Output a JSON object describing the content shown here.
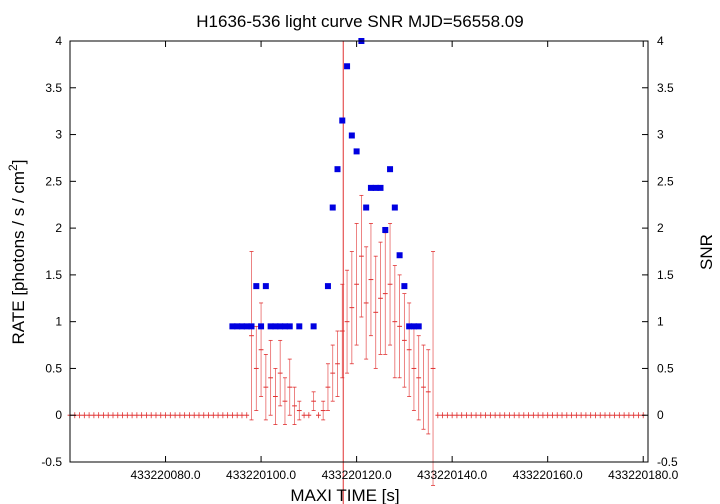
{
  "chart_data": {
    "type": "scatter",
    "title": "H1636-536 light curve  SNR MJD=56558.09",
    "xlabel": "MAXI TIME [s]",
    "ylabel_main": "RATE [photons / s / cm",
    "ylabel_sup": "2",
    "ylabel_close": "]",
    "y2label": "SNR",
    "xlim": [
      433220060.0,
      433220181.0
    ],
    "ylim": [
      -0.5,
      4
    ],
    "y2lim": [
      -0.5,
      4
    ],
    "x_ticks": [
      433220080.0,
      433220100.0,
      433220120.0,
      433220140.0,
      433220160.0,
      433220180.0
    ],
    "x_tick_labels": [
      "433220080.0",
      "433220100.0",
      "433220120.0",
      "433220140.0",
      "433220160.0",
      "433220180.0"
    ],
    "y_ticks": [
      -0.5,
      0,
      0.5,
      1,
      1.5,
      2,
      2.5,
      3,
      3.5,
      4
    ],
    "y_tick_labels": [
      "-0.5",
      "0",
      "0.5",
      "1",
      "1.5",
      "2",
      "2.5",
      "3",
      "3.5",
      "4"
    ],
    "y2_ticks": [
      -0.5,
      0,
      0.5,
      1,
      1.5,
      2,
      2.5,
      3,
      3.5,
      4
    ],
    "y2_tick_labels": [
      "-0.5",
      "0",
      "0.5",
      "1",
      "1.5",
      "2",
      "2.5",
      "3",
      "3.5",
      "4"
    ],
    "grid": false,
    "marker_time": 433220117.2,
    "colors": {
      "rate": "#e03030",
      "snr": "#0000e0",
      "marker": "#e03030",
      "axis": "#000000"
    },
    "series": [
      {
        "id": "rate",
        "style": "errorbar",
        "x": [
          433220060.0,
          433220061.0,
          433220062.0,
          433220063.0,
          433220064.0,
          433220065.0,
          433220066.0,
          433220067.0,
          433220068.0,
          433220069.0,
          433220070.0,
          433220071.0,
          433220072.0,
          433220073.0,
          433220074.0,
          433220075.0,
          433220076.0,
          433220077.0,
          433220078.0,
          433220079.0,
          433220080.0,
          433220081.0,
          433220082.0,
          433220083.0,
          433220084.0,
          433220085.0,
          433220086.0,
          433220087.0,
          433220088.0,
          433220089.0,
          433220090.0,
          433220091.0,
          433220092.0,
          433220093.0,
          433220094.0,
          433220095.0,
          433220096.0,
          433220097.0,
          433220098.0,
          433220099.0,
          433220100.0,
          433220101.0,
          433220102.0,
          433220103.0,
          433220104.0,
          433220105.0,
          433220106.0,
          433220107.0,
          433220108.0,
          433220109.0,
          433220110.0,
          433220111.0,
          433220112.0,
          433220113.0,
          433220114.0,
          433220115.0,
          433220116.0,
          433220117.0,
          433220118.0,
          433220119.0,
          433220120.0,
          433220121.0,
          433220122.0,
          433220123.0,
          433220124.0,
          433220125.0,
          433220126.0,
          433220127.0,
          433220128.0,
          433220129.0,
          433220130.0,
          433220131.0,
          433220132.0,
          433220133.0,
          433220134.0,
          433220135.0,
          433220136.0,
          433220137.0,
          433220138.0,
          433220139.0,
          433220140.0,
          433220141.0,
          433220142.0,
          433220143.0,
          433220144.0,
          433220145.0,
          433220146.0,
          433220147.0,
          433220148.0,
          433220149.0,
          433220150.0,
          433220151.0,
          433220152.0,
          433220153.0,
          433220154.0,
          433220155.0,
          433220156.0,
          433220157.0,
          433220158.0,
          433220159.0,
          433220160.0,
          433220161.0,
          433220162.0,
          433220163.0,
          433220164.0,
          433220165.0,
          433220166.0,
          433220167.0,
          433220168.0,
          433220169.0,
          433220170.0,
          433220171.0,
          433220172.0,
          433220173.0,
          433220174.0,
          433220175.0,
          433220176.0,
          433220177.0,
          433220178.0,
          433220179.0,
          433220180.0
        ],
        "y": [
          0,
          0,
          0,
          0,
          0,
          0,
          0,
          0,
          0,
          0,
          0,
          0,
          0,
          0,
          0,
          0,
          0,
          0,
          0,
          0,
          0,
          0,
          0,
          0,
          0,
          0,
          0,
          0,
          0,
          0,
          0,
          0,
          0,
          0,
          0,
          0,
          0,
          0,
          0.85,
          0.5,
          0.7,
          0.3,
          0.4,
          0.2,
          0.45,
          0.15,
          0.3,
          0.1,
          0.05,
          0,
          0,
          0.15,
          0,
          0.05,
          0.3,
          0.45,
          0.55,
          0.9,
          1.0,
          1.15,
          1.4,
          1.7,
          1.2,
          1.45,
          1.1,
          1.25,
          1.3,
          1.4,
          1.0,
          0.95,
          0.8,
          0.7,
          0.5,
          0.4,
          0.3,
          0.25,
          0.5,
          0,
          0,
          0,
          0,
          0,
          0,
          0,
          0,
          0,
          0,
          0,
          0,
          0,
          0,
          0,
          0,
          0,
          0,
          0,
          0,
          0,
          0,
          0,
          0,
          0,
          0,
          0,
          0,
          0,
          0,
          0,
          0,
          0,
          0,
          0,
          0,
          0,
          0,
          0,
          0,
          0,
          0,
          0,
          0
        ],
        "err": [
          0,
          0,
          0,
          0,
          0,
          0,
          0,
          0,
          0,
          0,
          0,
          0,
          0,
          0,
          0,
          0,
          0,
          0,
          0,
          0,
          0,
          0,
          0,
          0,
          0,
          0,
          0,
          0,
          0,
          0,
          0,
          0,
          0,
          0,
          0,
          0,
          0,
          0,
          0.9,
          0.45,
          0.5,
          0.35,
          0.4,
          0.3,
          0.35,
          0.25,
          0.3,
          0.2,
          0.1,
          0,
          0,
          0.1,
          0,
          0.1,
          0.25,
          0.3,
          0.35,
          0.5,
          0.55,
          0.6,
          0.65,
          0.65,
          0.6,
          0.6,
          0.6,
          0.6,
          0.65,
          0.65,
          0.6,
          0.55,
          0.5,
          0.5,
          0.45,
          0.45,
          0.45,
          0.45,
          1.25,
          0,
          0,
          0,
          0,
          0,
          0,
          0,
          0,
          0,
          0,
          0,
          0,
          0,
          0,
          0,
          0,
          0,
          0,
          0,
          0,
          0,
          0,
          0,
          0,
          0,
          0,
          0,
          0,
          0,
          0,
          0,
          0,
          0,
          0,
          0,
          0,
          0,
          0,
          0,
          0,
          0,
          0,
          0,
          0
        ]
      },
      {
        "id": "snr",
        "style": "points",
        "x": [
          433220094.0,
          433220095.0,
          433220096.0,
          433220097.0,
          433220098.0,
          433220099.0,
          433220100.0,
          433220101.0,
          433220102.0,
          433220103.0,
          433220104.0,
          433220105.0,
          433220106.0,
          433220108.0,
          433220111.0,
          433220114.0,
          433220115.0,
          433220116.0,
          433220117.0,
          433220118.0,
          433220119.0,
          433220120.0,
          433220121.0,
          433220122.0,
          433220123.0,
          433220124.0,
          433220125.0,
          433220126.0,
          433220127.0,
          433220128.0,
          433220129.0,
          433220130.0,
          433220131.0,
          433220132.0,
          433220133.0
        ],
        "y": [
          0.95,
          0.95,
          0.95,
          0.95,
          0.95,
          1.38,
          0.95,
          1.38,
          0.95,
          0.95,
          0.95,
          0.95,
          0.95,
          0.95,
          0.95,
          1.38,
          2.22,
          2.63,
          3.15,
          3.73,
          2.99,
          2.82,
          4.0,
          2.22,
          2.43,
          2.43,
          2.43,
          1.98,
          2.63,
          2.22,
          1.71,
          1.38,
          0.95,
          0.95,
          0.95
        ]
      }
    ]
  }
}
